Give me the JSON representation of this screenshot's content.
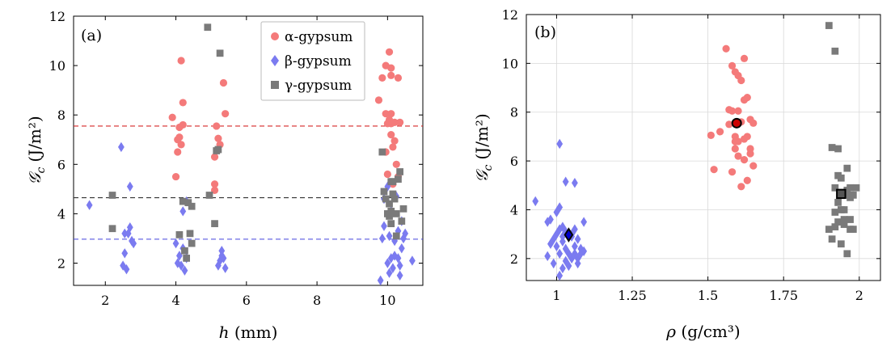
{
  "chart_data": [
    {
      "type": "scatter",
      "panel_label": "(a)",
      "xlabel": "h (mm)",
      "xlabel_var": "h",
      "xlabel_unit": "(mm)",
      "ylabel_var": "𝒢",
      "ylabel_sub": "c",
      "ylabel_unit": "(J/m²)",
      "xlim": [
        1.1,
        11.0
      ],
      "ylim": [
        1.1,
        12.0
      ],
      "xticks": [
        2,
        4,
        6,
        8,
        10
      ],
      "yticks": [
        2,
        4,
        6,
        8,
        10,
        12
      ],
      "grid": false,
      "legend": "top-right",
      "hlines": [
        {
          "y": 7.55,
          "color": "#d62728"
        },
        {
          "y": 4.65,
          "color": "#333333"
        },
        {
          "y": 2.97,
          "color": "#4444dd"
        }
      ],
      "series": [
        {
          "name": "α-gypsum",
          "marker": "circle",
          "color": "#f47a7a",
          "points": [
            [
              3.9,
              7.9
            ],
            [
              4.0,
              5.5
            ],
            [
              4.05,
              6.5
            ],
            [
              4.05,
              7.0
            ],
            [
              4.1,
              7.1
            ],
            [
              4.1,
              7.5
            ],
            [
              4.15,
              10.2
            ],
            [
              4.2,
              8.5
            ],
            [
              4.2,
              7.6
            ],
            [
              4.15,
              6.8
            ],
            [
              5.1,
              5.2
            ],
            [
              5.1,
              4.95
            ],
            [
              5.1,
              6.3
            ],
            [
              5.15,
              7.55
            ],
            [
              5.2,
              7.05
            ],
            [
              5.25,
              6.8
            ],
            [
              5.35,
              9.3
            ],
            [
              5.4,
              8.05
            ],
            [
              9.75,
              8.6
            ],
            [
              9.85,
              9.5
            ],
            [
              9.95,
              10.0
            ],
            [
              9.95,
              8.05
            ],
            [
              10.0,
              7.65
            ],
            [
              10.0,
              5.6
            ],
            [
              10.05,
              10.55
            ],
            [
              10.05,
              7.8
            ],
            [
              10.1,
              9.9
            ],
            [
              10.1,
              9.6
            ],
            [
              10.1,
              8.05
            ],
            [
              10.1,
              7.65
            ],
            [
              10.1,
              7.2
            ],
            [
              10.15,
              6.7
            ],
            [
              10.2,
              7.7
            ],
            [
              10.2,
              6.95
            ],
            [
              10.25,
              6.0
            ],
            [
              10.3,
              5.5
            ],
            [
              10.3,
              9.5
            ],
            [
              10.15,
              5.2
            ],
            [
              10.35,
              7.7
            ],
            [
              9.95,
              6.5
            ]
          ]
        },
        {
          "name": "β-gypsum",
          "marker": "diamond",
          "color": "#7b7bf0",
          "points": [
            [
              1.55,
              4.35
            ],
            [
              2.45,
              6.7
            ],
            [
              2.5,
              1.9
            ],
            [
              2.55,
              3.2
            ],
            [
              2.55,
              2.4
            ],
            [
              2.6,
              1.75
            ],
            [
              2.65,
              3.2
            ],
            [
              2.7,
              5.1
            ],
            [
              2.7,
              3.45
            ],
            [
              2.75,
              2.9
            ],
            [
              2.8,
              2.8
            ],
            [
              4.0,
              2.8
            ],
            [
              4.05,
              2.0
            ],
            [
              4.1,
              2.3
            ],
            [
              4.15,
              1.9
            ],
            [
              4.2,
              2.6
            ],
            [
              4.2,
              4.1
            ],
            [
              4.25,
              1.7
            ],
            [
              4.3,
              4.5
            ],
            [
              4.3,
              2.2
            ],
            [
              5.2,
              1.9
            ],
            [
              5.25,
              2.1
            ],
            [
              5.3,
              2.3
            ],
            [
              5.3,
              2.5
            ],
            [
              5.35,
              2.2
            ],
            [
              5.4,
              1.8
            ],
            [
              9.8,
              1.3
            ],
            [
              9.85,
              3.0
            ],
            [
              9.9,
              4.6
            ],
            [
              9.9,
              3.5
            ],
            [
              10.0,
              2.0
            ],
            [
              10.05,
              3.1
            ],
            [
              10.05,
              1.6
            ],
            [
              10.1,
              2.2
            ],
            [
              10.1,
              4.1
            ],
            [
              10.15,
              1.8
            ],
            [
              10.2,
              2.9
            ],
            [
              10.2,
              2.3
            ],
            [
              10.25,
              4.7
            ],
            [
              10.3,
              3.3
            ],
            [
              10.3,
              2.2
            ],
            [
              10.35,
              1.9
            ],
            [
              10.4,
              3.7
            ],
            [
              10.4,
              2.6
            ],
            [
              10.45,
              3.0
            ],
            [
              10.5,
              3.2
            ],
            [
              10.7,
              2.1
            ],
            [
              10.35,
              1.5
            ],
            [
              10.0,
              5.1
            ]
          ]
        },
        {
          "name": "γ-gypsum",
          "marker": "square",
          "color": "#7a7a7a",
          "points": [
            [
              2.2,
              4.75
            ],
            [
              2.2,
              3.4
            ],
            [
              4.1,
              3.15
            ],
            [
              4.2,
              4.5
            ],
            [
              4.25,
              2.5
            ],
            [
              4.3,
              2.2
            ],
            [
              4.35,
              4.45
            ],
            [
              4.4,
              3.2
            ],
            [
              4.45,
              4.3
            ],
            [
              4.45,
              2.8
            ],
            [
              4.9,
              11.55
            ],
            [
              4.95,
              4.75
            ],
            [
              5.15,
              6.55
            ],
            [
              5.2,
              6.6
            ],
            [
              5.1,
              3.6
            ],
            [
              5.25,
              10.5
            ],
            [
              9.85,
              6.5
            ],
            [
              9.9,
              4.9
            ],
            [
              9.95,
              4.6
            ],
            [
              10.0,
              4.0
            ],
            [
              10.05,
              4.4
            ],
            [
              10.05,
              3.9
            ],
            [
              10.1,
              5.3
            ],
            [
              10.1,
              4.1
            ],
            [
              10.1,
              3.6
            ],
            [
              10.15,
              5.3
            ],
            [
              10.15,
              4.8
            ],
            [
              10.2,
              4.6
            ],
            [
              10.25,
              3.1
            ],
            [
              10.25,
              4.0
            ],
            [
              10.3,
              5.4
            ],
            [
              10.35,
              5.7
            ],
            [
              10.4,
              3.7
            ],
            [
              10.45,
              4.2
            ],
            [
              10.05,
              4.0
            ]
          ]
        }
      ]
    },
    {
      "type": "scatter",
      "panel_label": "(b)",
      "xlabel": "ρ (g/cm³)",
      "xlabel_var": "ρ",
      "xlabel_unit": "(g/cm³)",
      "ylabel_var": "𝒢",
      "ylabel_sub": "c",
      "ylabel_unit": "(J/m²)",
      "xlim": [
        0.9,
        2.07
      ],
      "ylim": [
        1.1,
        12.0
      ],
      "xticks": [
        1,
        1.25,
        1.5,
        1.75,
        2
      ],
      "xtick_labels": [
        "1",
        "1.25",
        "1.5",
        "1.75",
        "2"
      ],
      "yticks": [
        2,
        4,
        6,
        8,
        10,
        12
      ],
      "grid": true,
      "means": [
        {
          "x": 1.04,
          "y": 2.97,
          "marker": "diamond",
          "color": "#0000cc"
        },
        {
          "x": 1.595,
          "y": 7.55,
          "marker": "circle",
          "color": "#cc0000"
        },
        {
          "x": 1.94,
          "y": 4.65,
          "marker": "square",
          "color": "#555555"
        }
      ],
      "series": [
        {
          "marker": "circle",
          "color": "#f47a7a",
          "points": [
            [
              1.51,
              7.05
            ],
            [
              1.52,
              5.65
            ],
            [
              1.54,
              7.2
            ],
            [
              1.56,
              10.6
            ],
            [
              1.57,
              8.1
            ],
            [
              1.57,
              7.5
            ],
            [
              1.58,
              5.55
            ],
            [
              1.58,
              9.9
            ],
            [
              1.58,
              8.05
            ],
            [
              1.59,
              9.65
            ],
            [
              1.59,
              7.0
            ],
            [
              1.59,
              6.5
            ],
            [
              1.6,
              9.5
            ],
            [
              1.6,
              8.05
            ],
            [
              1.6,
              6.8
            ],
            [
              1.61,
              9.3
            ],
            [
              1.61,
              7.6
            ],
            [
              1.61,
              4.95
            ],
            [
              1.62,
              10.2
            ],
            [
              1.62,
              8.5
            ],
            [
              1.62,
              6.9
            ],
            [
              1.62,
              6.05
            ],
            [
              1.63,
              8.6
            ],
            [
              1.63,
              7.0
            ],
            [
              1.63,
              5.2
            ],
            [
              1.64,
              7.7
            ],
            [
              1.64,
              6.3
            ],
            [
              1.64,
              6.5
            ],
            [
              1.65,
              7.55
            ],
            [
              1.65,
              5.8
            ],
            [
              1.6,
              6.2
            ],
            [
              1.59,
              6.8
            ]
          ]
        },
        {
          "marker": "diamond",
          "color": "#7b7bf0",
          "points": [
            [
              0.93,
              4.35
            ],
            [
              0.97,
              3.5
            ],
            [
              0.97,
              2.1
            ],
            [
              0.98,
              2.6
            ],
            [
              0.98,
              3.6
            ],
            [
              0.99,
              2.8
            ],
            [
              0.99,
              1.8
            ],
            [
              1.0,
              3.0
            ],
            [
              1.0,
              2.5
            ],
            [
              1.0,
              3.9
            ],
            [
              1.01,
              6.7
            ],
            [
              1.01,
              4.1
            ],
            [
              1.01,
              3.2
            ],
            [
              1.01,
              2.2
            ],
            [
              1.01,
              1.3
            ],
            [
              1.02,
              3.3
            ],
            [
              1.02,
              2.7
            ],
            [
              1.02,
              1.6
            ],
            [
              1.03,
              5.15
            ],
            [
              1.03,
              3.1
            ],
            [
              1.03,
              2.4
            ],
            [
              1.03,
              1.9
            ],
            [
              1.04,
              2.9
            ],
            [
              1.04,
              2.2
            ],
            [
              1.04,
              1.7
            ],
            [
              1.05,
              3.0
            ],
            [
              1.05,
              2.0
            ],
            [
              1.06,
              5.1
            ],
            [
              1.06,
              3.2
            ],
            [
              1.06,
              2.5
            ],
            [
              1.06,
              2.2
            ],
            [
              1.07,
              2.8
            ],
            [
              1.07,
              1.8
            ],
            [
              1.07,
              2.0
            ],
            [
              1.08,
              2.4
            ],
            [
              1.08,
              2.2
            ],
            [
              1.09,
              3.5
            ],
            [
              1.09,
              2.3
            ],
            [
              1.05,
              2.9
            ],
            [
              1.02,
              2.9
            ]
          ]
        },
        {
          "marker": "square",
          "color": "#7a7a7a",
          "points": [
            [
              1.9,
              11.55
            ],
            [
              1.9,
              3.2
            ],
            [
              1.91,
              6.55
            ],
            [
              1.91,
              2.8
            ],
            [
              1.92,
              10.5
            ],
            [
              1.92,
              3.9
            ],
            [
              1.92,
              3.3
            ],
            [
              1.92,
              4.9
            ],
            [
              1.93,
              5.4
            ],
            [
              1.93,
              4.3
            ],
            [
              1.93,
              3.5
            ],
            [
              1.93,
              6.5
            ],
            [
              1.94,
              5.3
            ],
            [
              1.94,
              4.6
            ],
            [
              1.94,
              4.0
            ],
            [
              1.94,
              2.6
            ],
            [
              1.95,
              4.0
            ],
            [
              1.95,
              3.6
            ],
            [
              1.95,
              3.4
            ],
            [
              1.96,
              5.7
            ],
            [
              1.96,
              4.8
            ],
            [
              1.96,
              4.6
            ],
            [
              1.96,
              2.2
            ],
            [
              1.97,
              4.5
            ],
            [
              1.97,
              3.6
            ],
            [
              1.97,
              3.2
            ],
            [
              1.97,
              4.9
            ],
            [
              1.98,
              4.6
            ],
            [
              1.98,
              3.2
            ],
            [
              1.99,
              4.9
            ]
          ]
        }
      ]
    }
  ]
}
